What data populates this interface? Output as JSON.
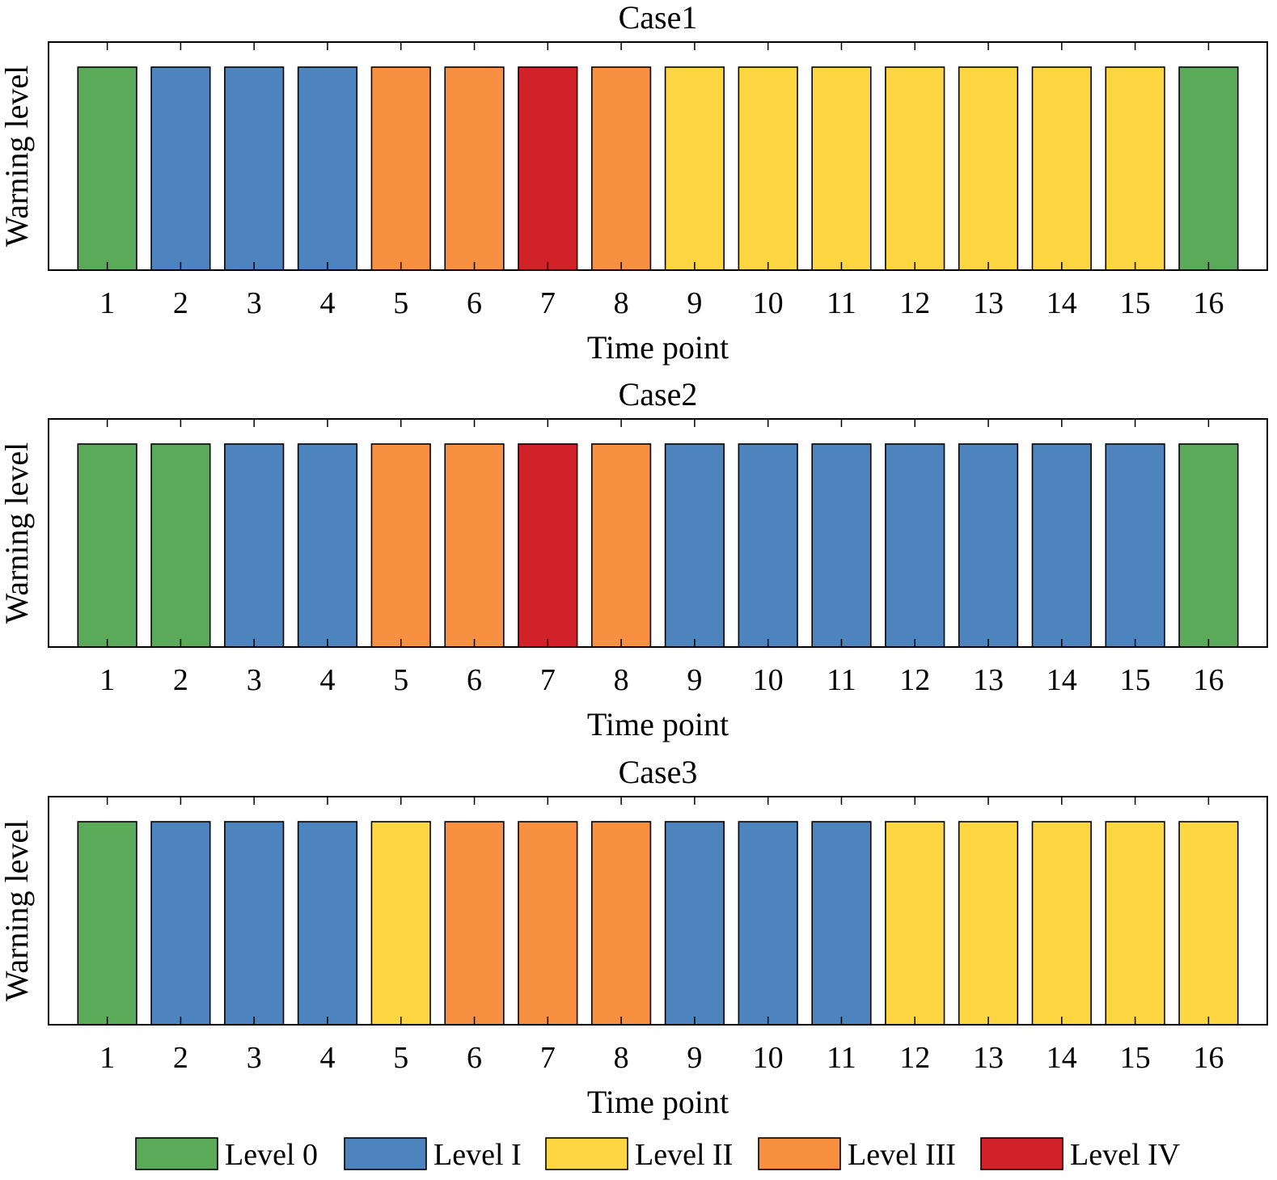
{
  "colors": {
    "level0": "#5baa59",
    "level1": "#4e84bd",
    "level2": "#fdd642",
    "level3": "#f79040",
    "level4": "#d1222a"
  },
  "legend": [
    {
      "key": "level0",
      "label": "Level 0"
    },
    {
      "key": "level1",
      "label": "Level I"
    },
    {
      "key": "level2",
      "label": "Level II"
    },
    {
      "key": "level3",
      "label": "Level III"
    },
    {
      "key": "level4",
      "label": "Level IV"
    }
  ],
  "chart_data": [
    {
      "type": "bar",
      "title": "Case1",
      "xlabel": "Time point",
      "ylabel": "Warning level",
      "categories": [
        "1",
        "2",
        "3",
        "4",
        "5",
        "6",
        "7",
        "8",
        "9",
        "10",
        "11",
        "12",
        "13",
        "14",
        "15",
        "16"
      ],
      "levels": [
        "level0",
        "level1",
        "level1",
        "level1",
        "level3",
        "level3",
        "level4",
        "level3",
        "level2",
        "level2",
        "level2",
        "level2",
        "level2",
        "level2",
        "level2",
        "level0"
      ],
      "grid": false,
      "legend_position": "bottom"
    },
    {
      "type": "bar",
      "title": "Case2",
      "xlabel": "Time point",
      "ylabel": "Warning level",
      "categories": [
        "1",
        "2",
        "3",
        "4",
        "5",
        "6",
        "7",
        "8",
        "9",
        "10",
        "11",
        "12",
        "13",
        "14",
        "15",
        "16"
      ],
      "levels": [
        "level0",
        "level0",
        "level1",
        "level1",
        "level3",
        "level3",
        "level4",
        "level3",
        "level1",
        "level1",
        "level1",
        "level1",
        "level1",
        "level1",
        "level1",
        "level0"
      ],
      "grid": false,
      "legend_position": "bottom"
    },
    {
      "type": "bar",
      "title": "Case3",
      "xlabel": "Time point",
      "ylabel": "Warning level",
      "categories": [
        "1",
        "2",
        "3",
        "4",
        "5",
        "6",
        "7",
        "8",
        "9",
        "10",
        "11",
        "12",
        "13",
        "14",
        "15",
        "16"
      ],
      "levels": [
        "level0",
        "level1",
        "level1",
        "level1",
        "level2",
        "level3",
        "level3",
        "level3",
        "level1",
        "level1",
        "level1",
        "level2",
        "level2",
        "level2",
        "level2",
        "level2"
      ],
      "grid": false,
      "legend_position": "bottom"
    }
  ]
}
